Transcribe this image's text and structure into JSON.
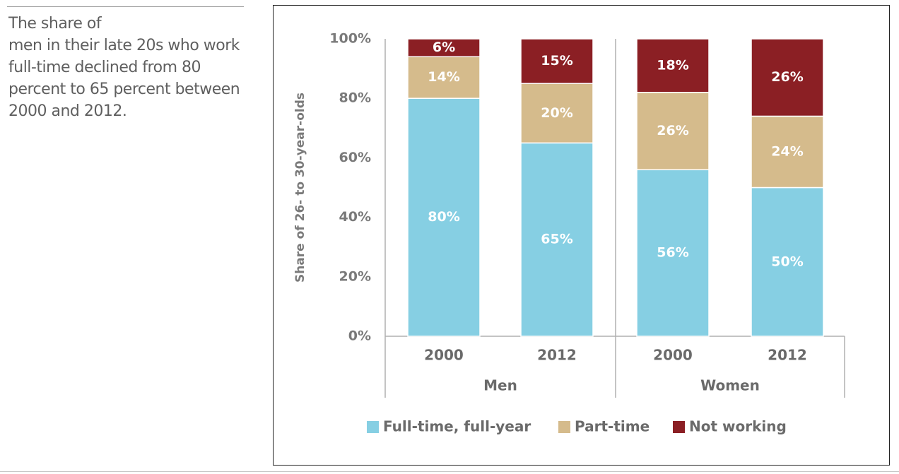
{
  "caption": {
    "lines": [
      "The share of",
      "men in their late 20s who work",
      "full-time declined from 80",
      "percent to 65 percent between",
      "2000 and 2012."
    ]
  },
  "chart_data": {
    "type": "bar",
    "stacked": true,
    "ylabel": "Share of 26- to 30-year-olds",
    "ylim": [
      0,
      100
    ],
    "yticks": [
      "0%",
      "20%",
      "40%",
      "60%",
      "80%",
      "100%"
    ],
    "groups": [
      "Men",
      "Women"
    ],
    "categories": [
      "2000",
      "2012",
      "2000",
      "2012"
    ],
    "category_groups": [
      "Men",
      "Men",
      "Women",
      "Women"
    ],
    "series": [
      {
        "name": "Full-time, full-year",
        "color": "#86cfe3",
        "values": [
          80,
          65,
          56,
          50
        ],
        "labels": [
          "80%",
          "65%",
          "56%",
          "50%"
        ]
      },
      {
        "name": "Part-time",
        "color": "#d5bb8c",
        "values": [
          14,
          20,
          26,
          24
        ],
        "labels": [
          "14%",
          "20%",
          "26%",
          "24%"
        ]
      },
      {
        "name": "Not working",
        "color": "#8b1f24",
        "values": [
          6,
          15,
          18,
          26
        ],
        "labels": [
          "6%",
          "15%",
          "18%",
          "26%"
        ]
      }
    ],
    "legend_position": "bottom",
    "grid": false
  }
}
